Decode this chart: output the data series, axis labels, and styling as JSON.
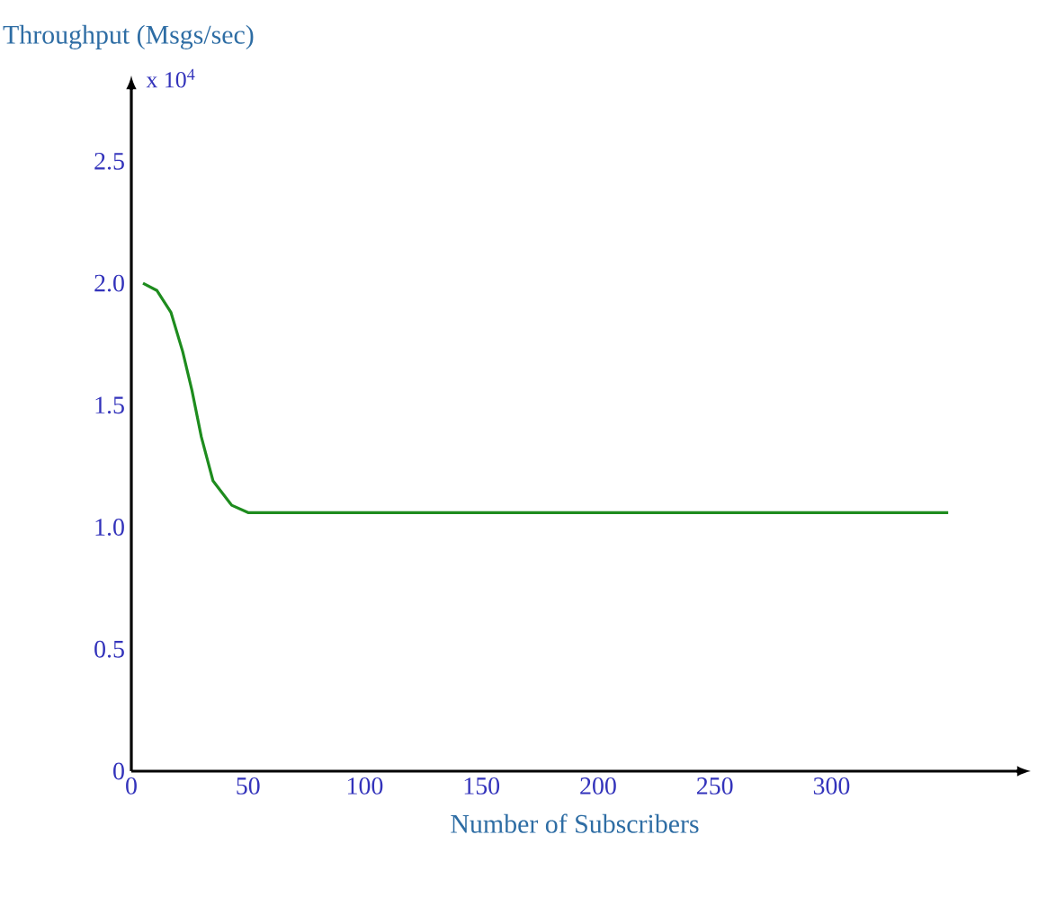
{
  "chart_data": {
    "type": "line",
    "ylabel": "Throughput (Msgs/sec)",
    "xlabel": "Number of Subscribers",
    "annotations": [
      "x 10$^{4}$"
    ],
    "x": [
      5,
      11,
      17,
      22,
      26,
      30,
      35,
      43,
      50,
      350
    ],
    "series": [
      {
        "color": "#1e8c1e",
        "values": [
          2.0,
          1.97,
          1.88,
          1.72,
          1.56,
          1.37,
          1.19,
          1.09,
          1.06,
          1.06
        ]
      }
    ],
    "xlim": [
      0,
      380
    ],
    "xticks": [
      0,
      50,
      100,
      150,
      200,
      250,
      300
    ],
    "ylim": [
      0,
      2.8
    ],
    "yticks": [
      0,
      0.5,
      {
        "value": 1.0,
        "label": "1.0"
      },
      1.5,
      {
        "value": 2.0,
        "label": "2.0"
      },
      2.5
    ],
    "grid": false,
    "marker": "none",
    "line_style": "solid"
  }
}
